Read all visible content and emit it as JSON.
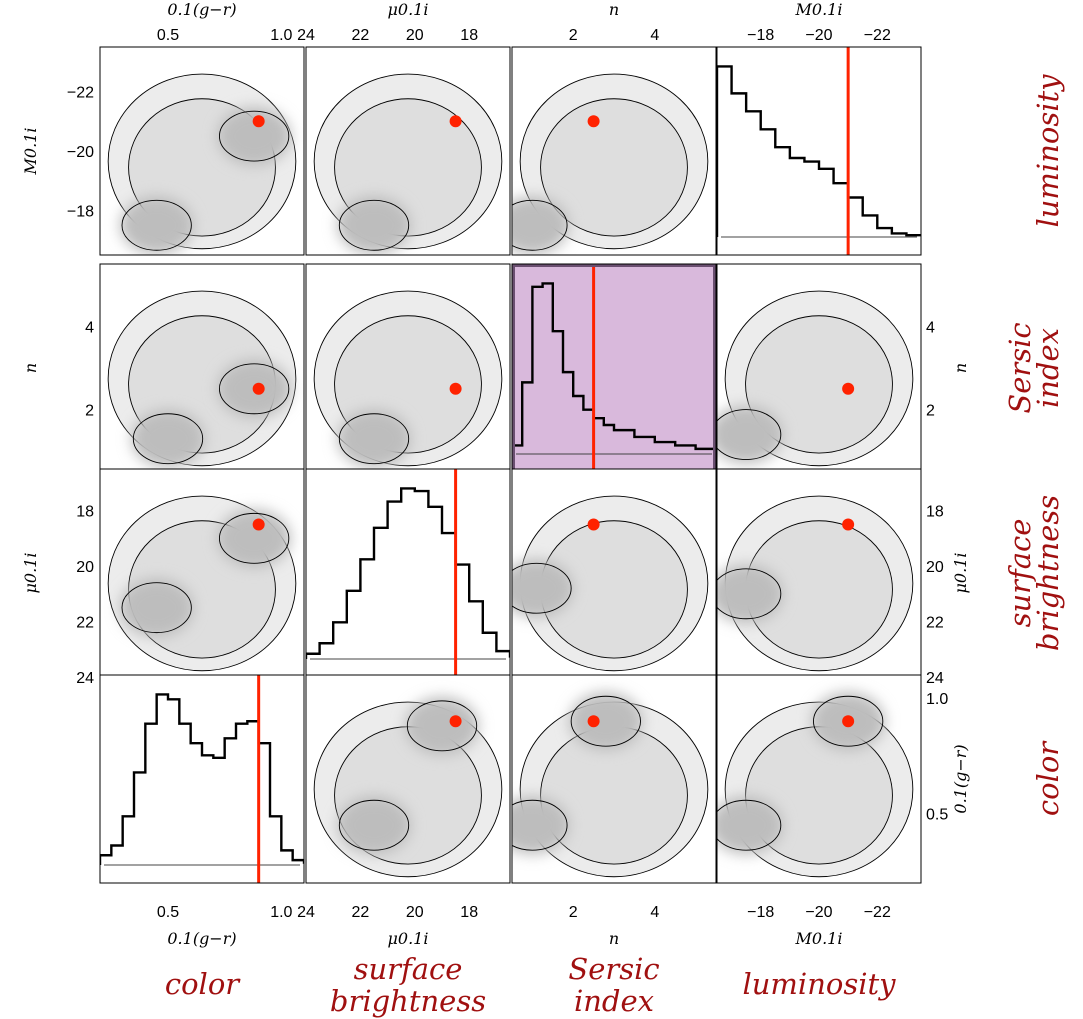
{
  "chart_data": {
    "type": "scatter-matrix",
    "variables": [
      {
        "key": "color",
        "name": "color",
        "axis_label": "0.1(g−r)",
        "ticks": [
          "0.5",
          "1.0"
        ],
        "range": [
          0.2,
          1.1
        ]
      },
      {
        "key": "sb",
        "name": "surface brightness",
        "axis_label": "μ0.1i",
        "ticks": [
          "24",
          "22",
          "20",
          "18"
        ],
        "range": [
          24,
          16.5
        ]
      },
      {
        "key": "n",
        "name": "Sersic index",
        "axis_label": "n",
        "ticks": [
          "2",
          "4"
        ],
        "range": [
          0.5,
          5.5
        ]
      },
      {
        "key": "lum",
        "name": "luminosity",
        "axis_label": "M0.1i",
        "ticks": [
          "−18",
          "−20",
          "−22"
        ],
        "range": [
          -16.5,
          -23.5
        ]
      }
    ],
    "highlighted_galaxy": {
      "color": 0.9,
      "sb": 18.5,
      "n": 2.5,
      "lum": -21
    },
    "highlighted_panel": "Sersic index histogram",
    "highlight_color": "#d9b9dc",
    "marker_color": "#ff2200",
    "histograms": {
      "color": {
        "x": [
          0.2,
          0.25,
          0.3,
          0.35,
          0.4,
          0.45,
          0.5,
          0.55,
          0.6,
          0.65,
          0.7,
          0.75,
          0.8,
          0.85,
          0.9,
          0.95,
          1.0,
          1.05,
          1.1
        ],
        "y": [
          0.04,
          0.08,
          0.2,
          0.38,
          0.58,
          0.7,
          0.68,
          0.58,
          0.5,
          0.45,
          0.44,
          0.52,
          0.58,
          0.59,
          0.5,
          0.2,
          0.06,
          0.02,
          0.01
        ]
      },
      "sb": {
        "x": [
          24,
          23.5,
          23,
          22.5,
          22,
          21.5,
          21,
          20.5,
          20,
          19.5,
          19,
          18.5,
          18,
          17.5,
          17,
          16.5
        ],
        "y": [
          0.02,
          0.06,
          0.14,
          0.26,
          0.38,
          0.5,
          0.6,
          0.65,
          0.64,
          0.58,
          0.48,
          0.36,
          0.22,
          0.1,
          0.03,
          0.01
        ]
      },
      "n": {
        "x": [
          0.5,
          0.75,
          1.0,
          1.25,
          1.5,
          1.75,
          2.0,
          2.25,
          2.5,
          2.75,
          3.0,
          3.5,
          4.0,
          4.5,
          5.0,
          5.5
        ],
        "y": [
          0.05,
          0.42,
          0.98,
          1.0,
          0.72,
          0.48,
          0.34,
          0.26,
          0.21,
          0.17,
          0.14,
          0.1,
          0.07,
          0.05,
          0.03,
          0.02
        ]
      },
      "lum": {
        "x": [
          -16.5,
          -17,
          -17.5,
          -18,
          -18.5,
          -19,
          -19.5,
          -20,
          -20.5,
          -21,
          -21.5,
          -22,
          -22.5,
          -23,
          -23.5
        ],
        "y": [
          0.95,
          0.8,
          0.7,
          0.6,
          0.5,
          0.44,
          0.42,
          0.38,
          0.3,
          0.22,
          0.12,
          0.05,
          0.02,
          0.01,
          0.01
        ]
      }
    },
    "density_peaks": {
      "color_vs_lum": [
        {
          "x": 0.45,
          "y": -17.5
        },
        {
          "x": 0.88,
          "y": -20.5
        }
      ],
      "sb_vs_lum": [
        {
          "x": 21.5,
          "y": -17.5
        }
      ],
      "n_vs_lum": [
        {
          "x": 1.0,
          "y": -17.5
        }
      ],
      "color_vs_n": [
        {
          "x": 0.5,
          "y": 1.3
        },
        {
          "x": 0.88,
          "y": 2.5
        }
      ],
      "sb_vs_n": [
        {
          "x": 21.5,
          "y": 1.3
        }
      ],
      "lum_vs_n": [
        {
          "x": -17.5,
          "y": 1.4
        }
      ],
      "color_vs_sb": [
        {
          "x": 0.45,
          "y": 21.5
        },
        {
          "x": 0.88,
          "y": 19
        }
      ],
      "n_vs_sb": [
        {
          "x": 1.1,
          "y": 20.8
        }
      ],
      "lum_vs_sb": [
        {
          "x": -17.5,
          "y": 21
        }
      ],
      "sb_vs_color": [
        {
          "x": 21.5,
          "y": 0.45
        },
        {
          "x": 19,
          "y": 0.88
        }
      ],
      "n_vs_color": [
        {
          "x": 1.0,
          "y": 0.45
        },
        {
          "x": 2.8,
          "y": 0.9
        }
      ],
      "lum_vs_color": [
        {
          "x": -17.5,
          "y": 0.45
        },
        {
          "x": -21,
          "y": 0.9
        }
      ]
    },
    "bottom_labels": [
      "color",
      "surface brightness",
      "Sersic index",
      "luminosity"
    ],
    "right_labels": [
      "luminosity",
      "Sersic index",
      "surface brightness",
      "color"
    ]
  }
}
